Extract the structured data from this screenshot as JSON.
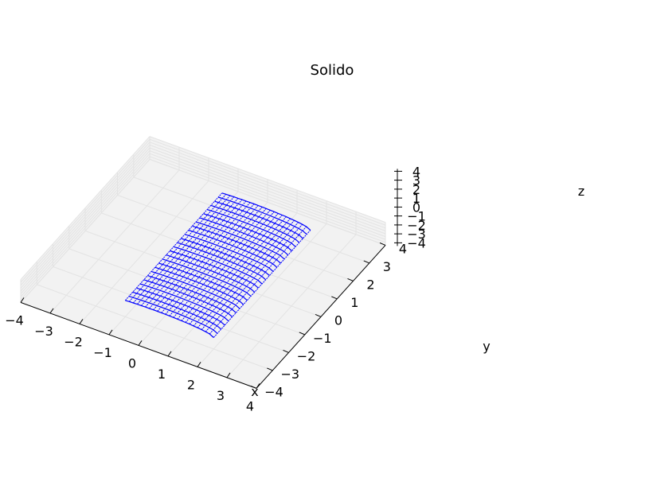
{
  "chart_data": {
    "type": "3d-line",
    "title": "Solido",
    "xlabel": "x",
    "ylabel": "y",
    "zlabel": "z",
    "xlim": [
      -4,
      4
    ],
    "ylim": [
      -4,
      4
    ],
    "zlim": [
      -4,
      4
    ],
    "xticks": [
      "−4",
      "−3",
      "−2",
      "−1",
      "0",
      "1",
      "2",
      "3",
      "4"
    ],
    "yticks": [
      "−4",
      "−3",
      "−2",
      "−1",
      "0",
      "1",
      "2",
      "3",
      "4"
    ],
    "zticks": [
      "−4",
      "−3",
      "−2",
      "−1",
      "0",
      "1",
      "2",
      "3",
      "4"
    ],
    "grid": true,
    "pane_color": "#f2f2f2",
    "series_color": "#0000ff",
    "solid": {
      "x_range": [
        -1,
        2
      ],
      "y_range": [
        -3,
        3
      ],
      "surface": "half-cylinder x^2 + z^2 = 4, z >= 0"
    }
  }
}
